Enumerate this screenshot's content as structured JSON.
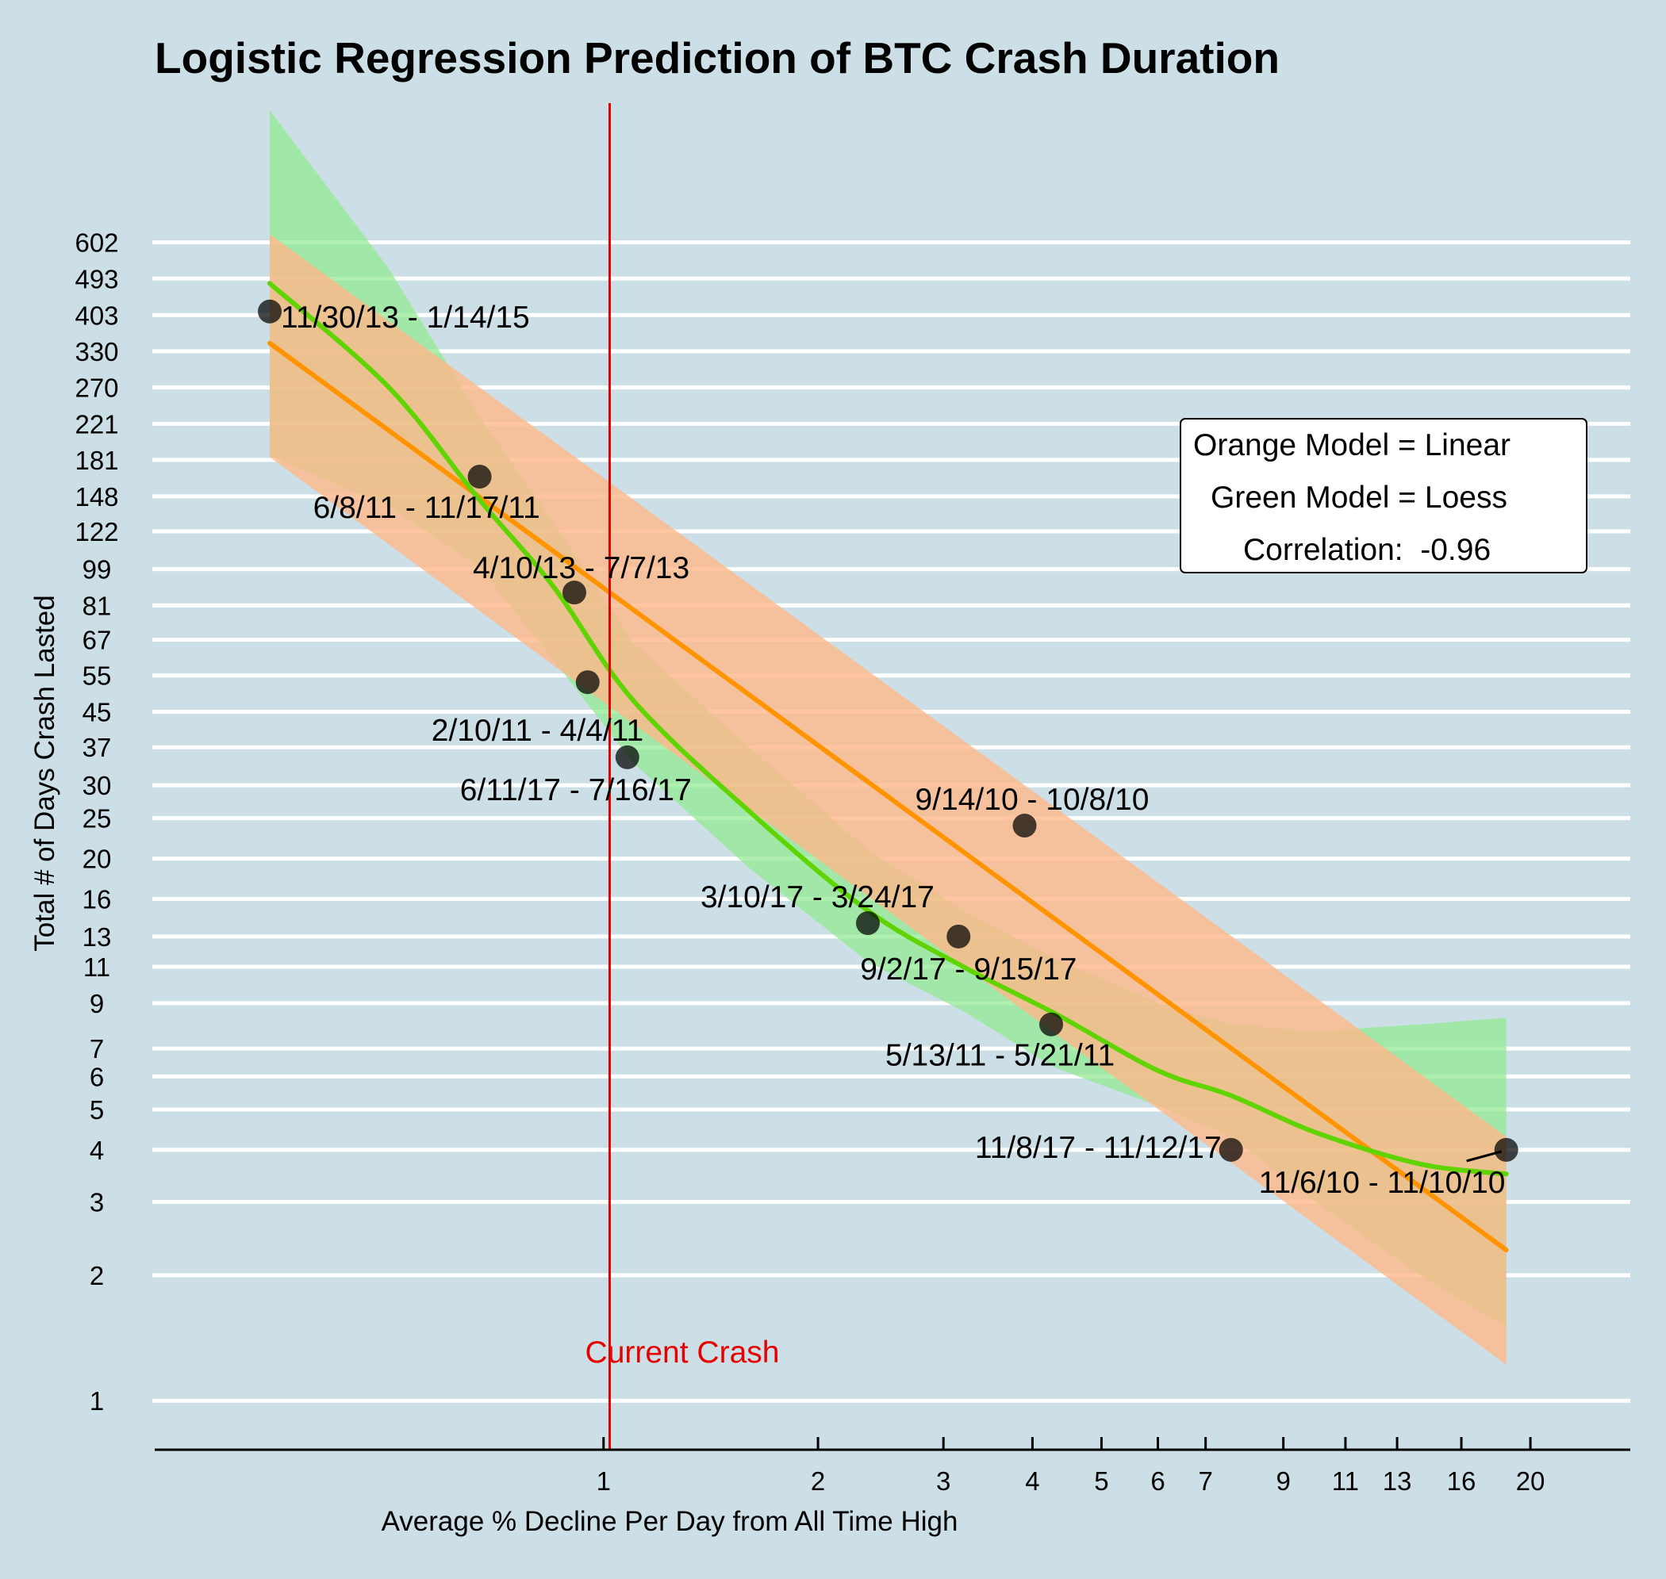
{
  "colors": {
    "background": "#ccdfe6",
    "gridline": "#ffffff",
    "linear_line": "#ff9400",
    "linear_band": "#ffb889",
    "loess_line": "#5fd400",
    "loess_band": "#8ee98d",
    "current_crash": "#e60000",
    "point": "#000000"
  },
  "chart_data": {
    "type": "scatter",
    "title": "Logistic Regression Prediction of BTC Crash Duration",
    "xlabel": "Average % Decline Per Day from All Time High",
    "ylabel": "Total # of Days Crash Lasted",
    "x_scale": "log",
    "y_scale": "log",
    "xlim": [
      0.29,
      22.5
    ],
    "ylim": [
      0.87,
      1300
    ],
    "x_ticks": [
      1,
      2,
      3,
      4,
      5,
      6,
      7,
      9,
      11,
      13,
      16,
      20
    ],
    "y_ticks": [
      1,
      2,
      3,
      4,
      5,
      6,
      7,
      9,
      11,
      13,
      16,
      20,
      25,
      30,
      37,
      45,
      55,
      67,
      81,
      99,
      122,
      148,
      181,
      221,
      270,
      330,
      403,
      493,
      602
    ],
    "grid": "horizontal",
    "points": [
      {
        "label": "11/30/13 - 1/14/15",
        "x": 0.34,
        "y": 411
      },
      {
        "label": "6/8/11 - 11/17/11",
        "x": 0.67,
        "y": 165
      },
      {
        "label": "4/10/13 - 7/7/13",
        "x": 0.91,
        "y": 87
      },
      {
        "label": "2/10/11 - 4/4/11",
        "x": 0.95,
        "y": 53
      },
      {
        "label": "6/11/17 - 7/16/17",
        "x": 1.08,
        "y": 35
      },
      {
        "label": "9/14/10 - 10/8/10",
        "x": 3.9,
        "y": 24
      },
      {
        "label": "3/10/17 - 3/24/17",
        "x": 2.35,
        "y": 14
      },
      {
        "label": "9/2/17 - 9/15/17",
        "x": 3.15,
        "y": 13
      },
      {
        "label": "5/13/11 - 5/21/11",
        "x": 4.25,
        "y": 8
      },
      {
        "label": "11/8/17 - 11/12/17",
        "x": 7.6,
        "y": 4
      },
      {
        "label": "11/6/10 - 11/10/10",
        "x": 18.5,
        "y": 4
      }
    ],
    "series": [
      {
        "name": "Orange Model = Linear",
        "x": [
          0.34,
          18.5
        ],
        "fit": [
          345,
          2.3
        ],
        "lower": [
          184,
          1.22
        ],
        "upper": [
          630,
          4.3
        ]
      },
      {
        "name": "Green Model = Loess",
        "x": [
          0.34,
          0.5,
          0.67,
          0.85,
          1.1,
          1.6,
          2.35,
          3.2,
          4.3,
          6.0,
          7.6,
          10,
          14,
          18.5
        ],
        "fit": [
          480,
          270,
          145,
          90,
          48,
          26,
          15,
          11,
          8.5,
          6.2,
          5.4,
          4.4,
          3.7,
          3.5
        ],
        "lower": [
          185,
          140,
          100,
          60,
          34,
          19,
          11.3,
          8.6,
          6.3,
          5.1,
          4.3,
          3.0,
          2.0,
          1.5
        ],
        "upper": [
          1250,
          520,
          230,
          128,
          66,
          37,
          21,
          15,
          11.5,
          9.0,
          8.0,
          7.7,
          8.0,
          8.3
        ]
      }
    ],
    "vline": {
      "x": 1.02,
      "label": "Current Crash"
    },
    "legend": {
      "placement": "right",
      "lines": [
        "Orange Model = Linear",
        "Green Model = Loess",
        "Correlation:  -0.96"
      ]
    }
  }
}
